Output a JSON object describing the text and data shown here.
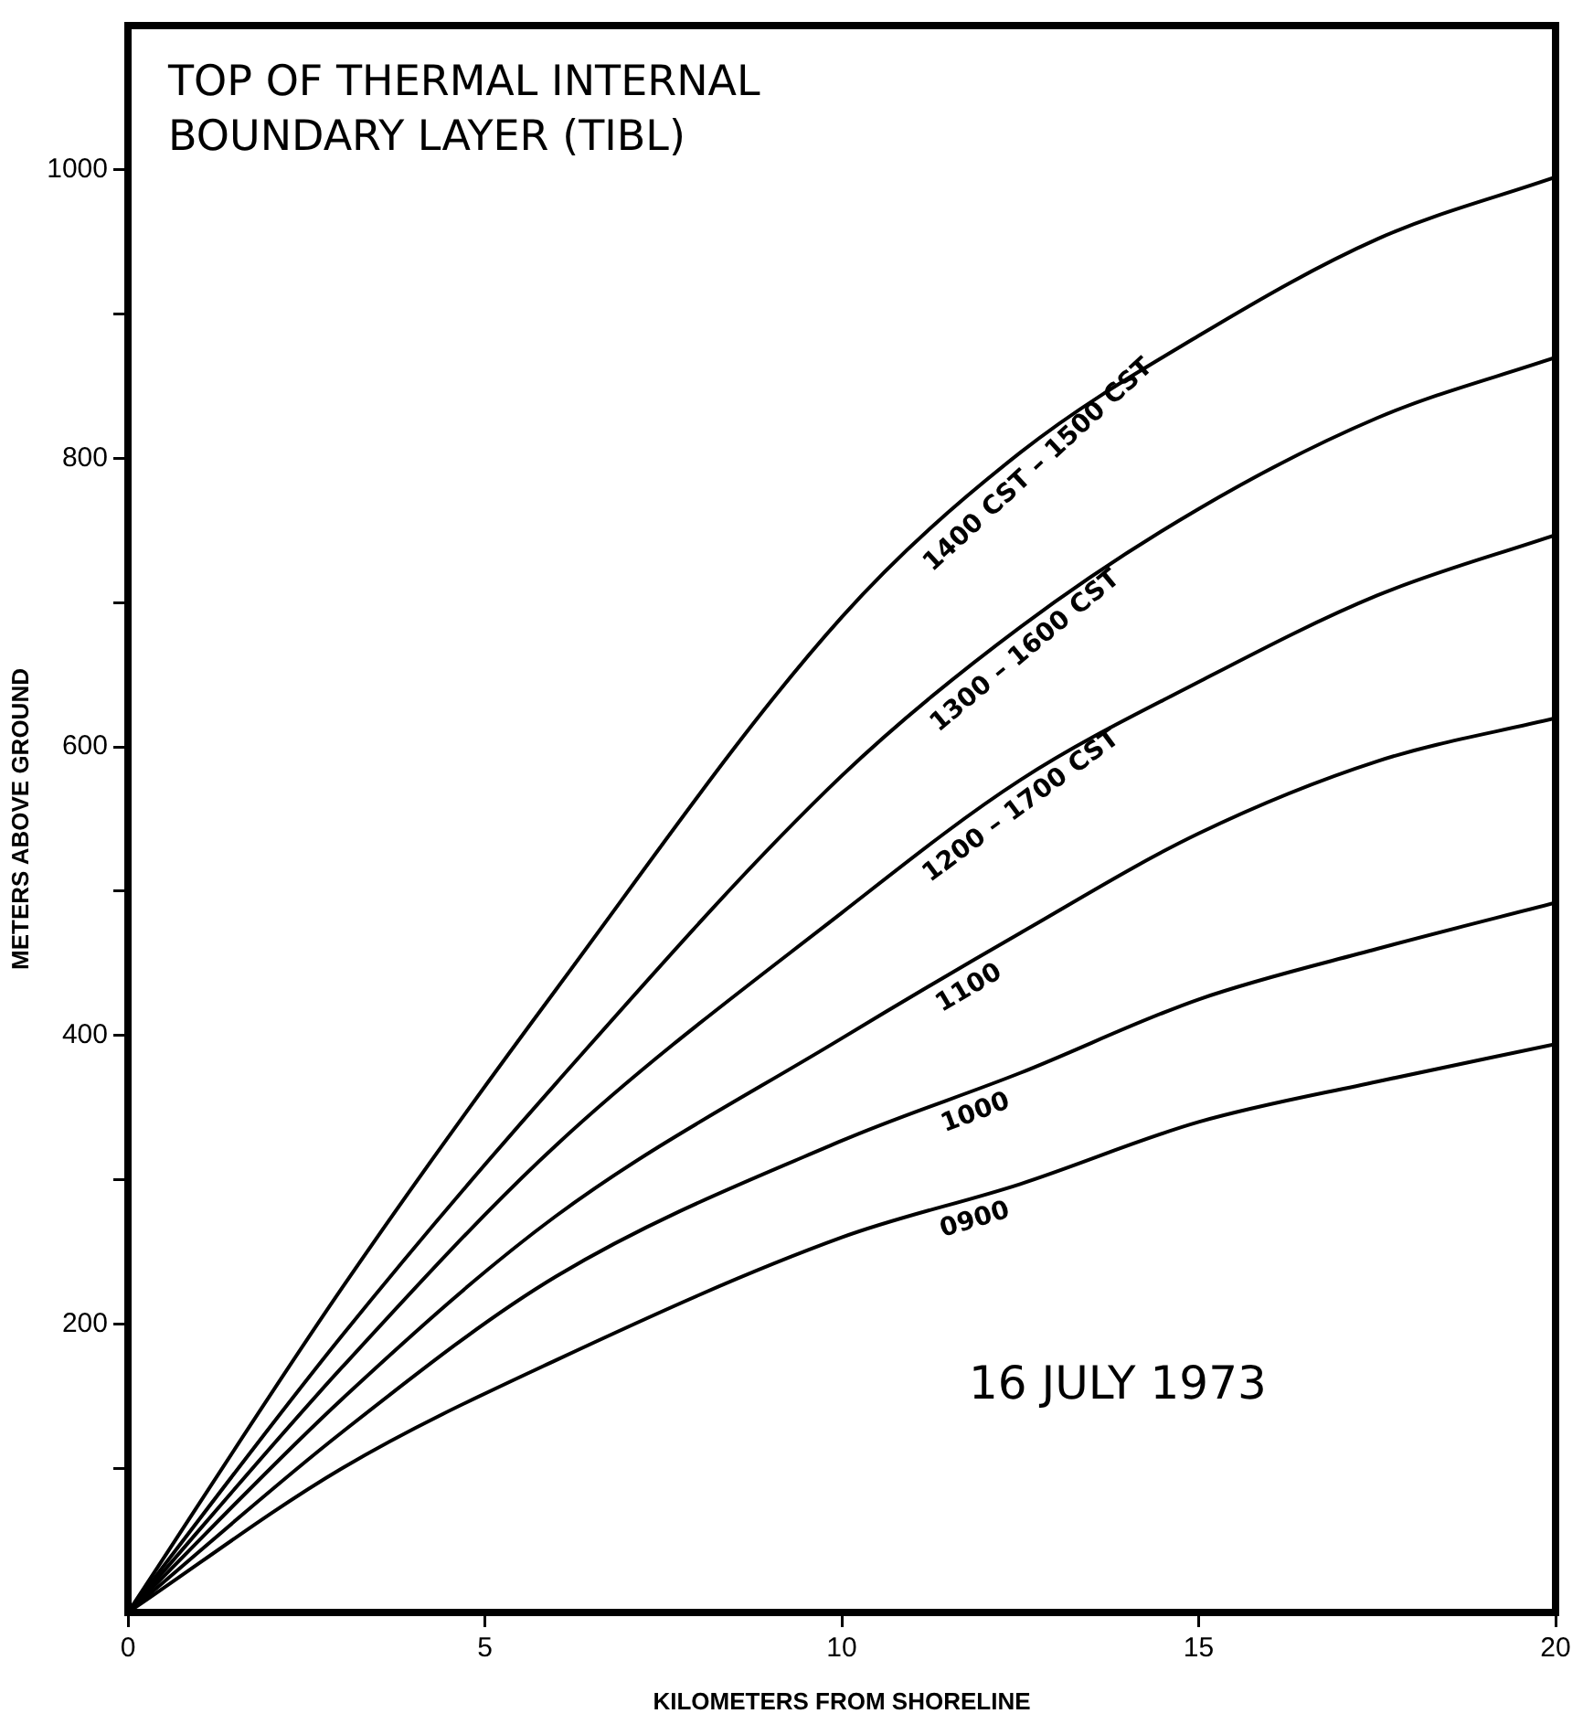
{
  "chart_data": {
    "type": "line",
    "title": "TOP OF THERMAL INTERNAL BOUNDARY LAYER (TIBL)",
    "xlabel": "KILOMETERS FROM SHORELINE",
    "ylabel": "METERS ABOVE GROUND",
    "annotations": [
      "16 JULY 1973"
    ],
    "x": [
      0,
      3,
      6,
      10,
      12.5,
      15,
      17.5,
      20
    ],
    "series": [
      {
        "name": "0900",
        "color": "#000000",
        "values": [
          0,
          100,
          175,
          260,
          297,
          340,
          368,
          394
        ]
      },
      {
        "name": "1000",
        "color": "#000000",
        "values": [
          0,
          125,
          233,
          327,
          374,
          425,
          460,
          492
        ]
      },
      {
        "name": "1100",
        "color": "#000000",
        "values": [
          0,
          148,
          275,
          398,
          471,
          540,
          590,
          620
        ]
      },
      {
        "name": "1200 – 1700 CST",
        "color": "#000000",
        "values": [
          0,
          170,
          324,
          485,
          577,
          645,
          705,
          747
        ]
      },
      {
        "name": "1300 – 1600 CST",
        "color": "#000000",
        "values": [
          0,
          192,
          367,
          580,
          683,
          765,
          828,
          870
        ]
      },
      {
        "name": "1400 CST – 1500 CST",
        "color": "#000000",
        "values": [
          0,
          225,
          432,
          690,
          804,
          885,
          952,
          995
        ]
      }
    ],
    "xlim": [
      0,
      20
    ],
    "xticks": [
      0,
      5,
      10,
      15,
      20
    ],
    "ylim": [
      0,
      1100
    ],
    "yticks": [
      {
        "value": 100,
        "label": null
      },
      200,
      {
        "value": 300,
        "label": null
      },
      400,
      {
        "value": 500,
        "label": null
      },
      600,
      {
        "value": 700,
        "label": null
      },
      800,
      {
        "value": 900,
        "label": null
      },
      1000
    ],
    "grid": false,
    "legend": false,
    "marker": "none",
    "line_style": "solid"
  }
}
